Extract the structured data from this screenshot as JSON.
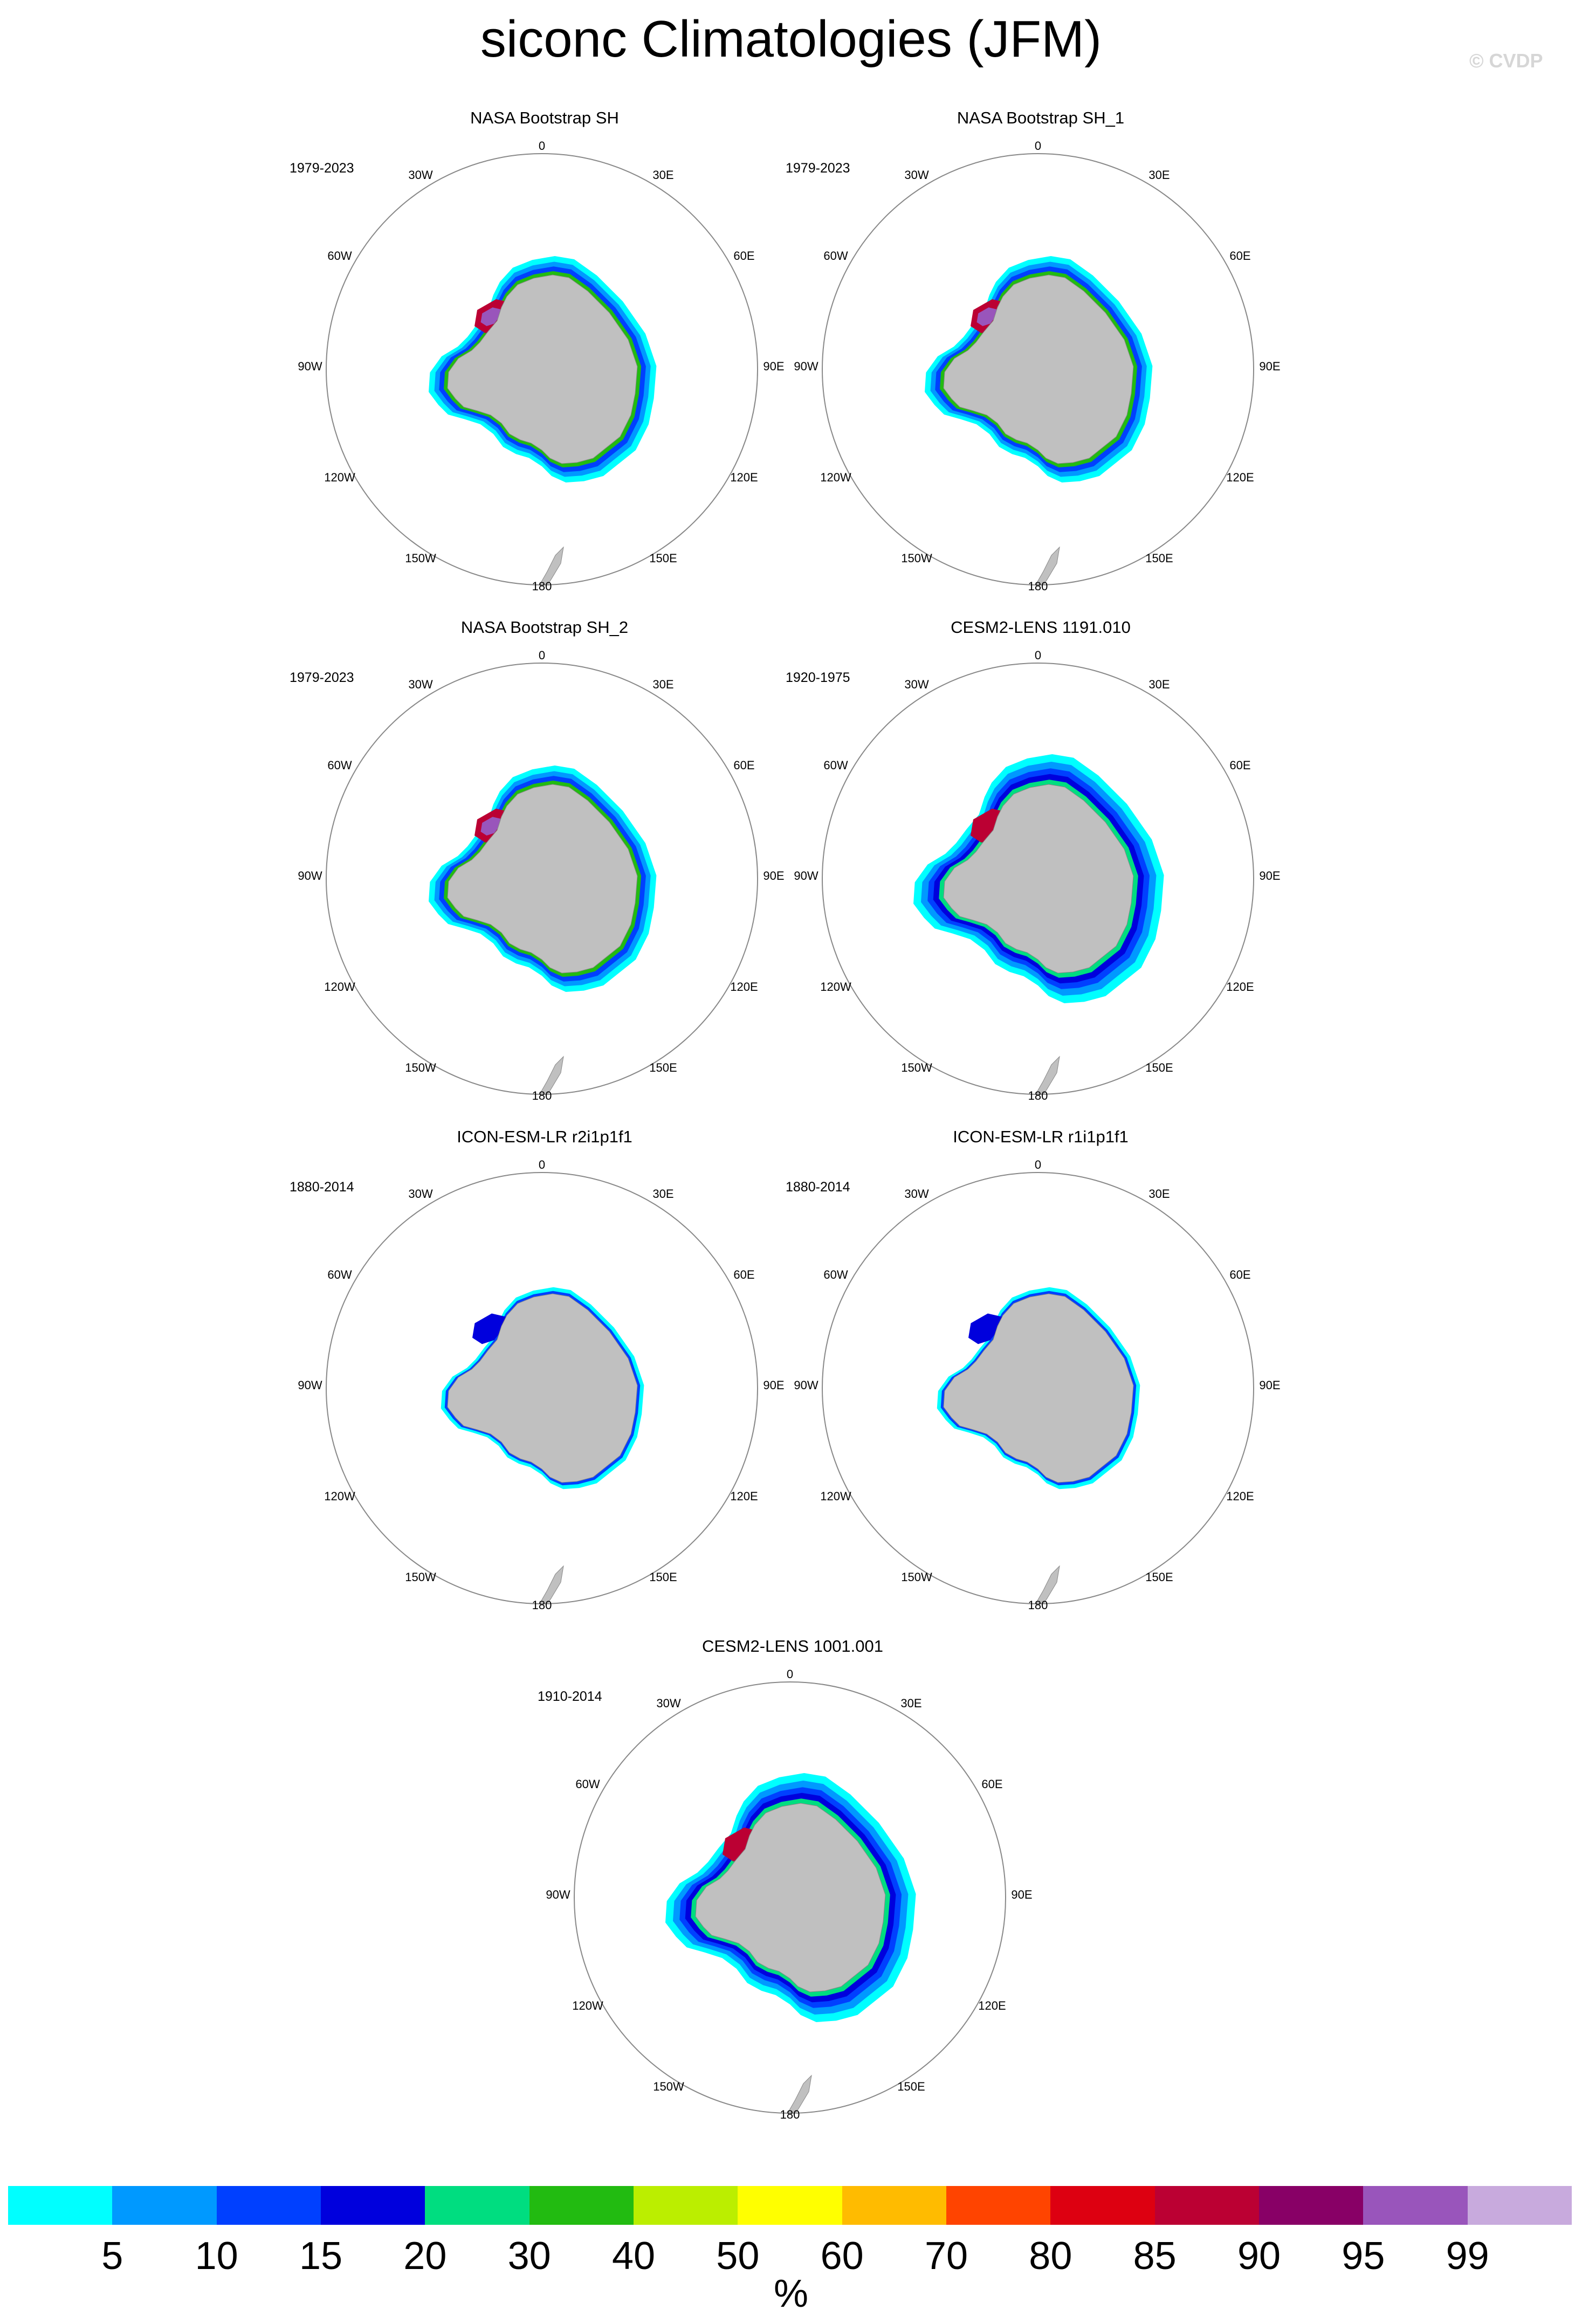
{
  "title": "siconc Climatologies (JFM)",
  "copyright": "© CVDP",
  "lon_labels": [
    "0",
    "30E",
    "60E",
    "90E",
    "120E",
    "150E",
    "180",
    "150W",
    "120W",
    "90W",
    "60W",
    "30W"
  ],
  "panels": [
    {
      "title": "NASA Bootstrap SH",
      "years": "1979-2023",
      "variant": "obs"
    },
    {
      "title": "NASA Bootstrap SH_1",
      "years": "1979-2023",
      "variant": "obs"
    },
    {
      "title": "NASA Bootstrap SH_2",
      "years": "1979-2023",
      "variant": "obs"
    },
    {
      "title": "CESM2-LENS 1191.010",
      "years": "1920-1975",
      "variant": "cesm"
    },
    {
      "title": "ICON-ESM-LR r2i1p1f1",
      "years": "1880-2014",
      "variant": "icon"
    },
    {
      "title": "ICON-ESM-LR r1i1p1f1",
      "years": "1880-2014",
      "variant": "icon"
    },
    {
      "title": "CESM2-LENS 1001.001",
      "years": "1910-2014",
      "variant": "cesm"
    }
  ],
  "colorbar": {
    "colors": [
      "#00ffff",
      "#0099ff",
      "#0040ff",
      "#0000dd",
      "#00dd80",
      "#22bb11",
      "#bbee00",
      "#ffff00",
      "#ffbb00",
      "#ff4400",
      "#dd0011",
      "#bb0033",
      "#880066",
      "#9955bb",
      "#c8aadd"
    ],
    "labels": [
      "5",
      "10",
      "15",
      "20",
      "30",
      "40",
      "50",
      "60",
      "70",
      "80",
      "85",
      "90",
      "95",
      "99"
    ],
    "units": "%"
  }
}
